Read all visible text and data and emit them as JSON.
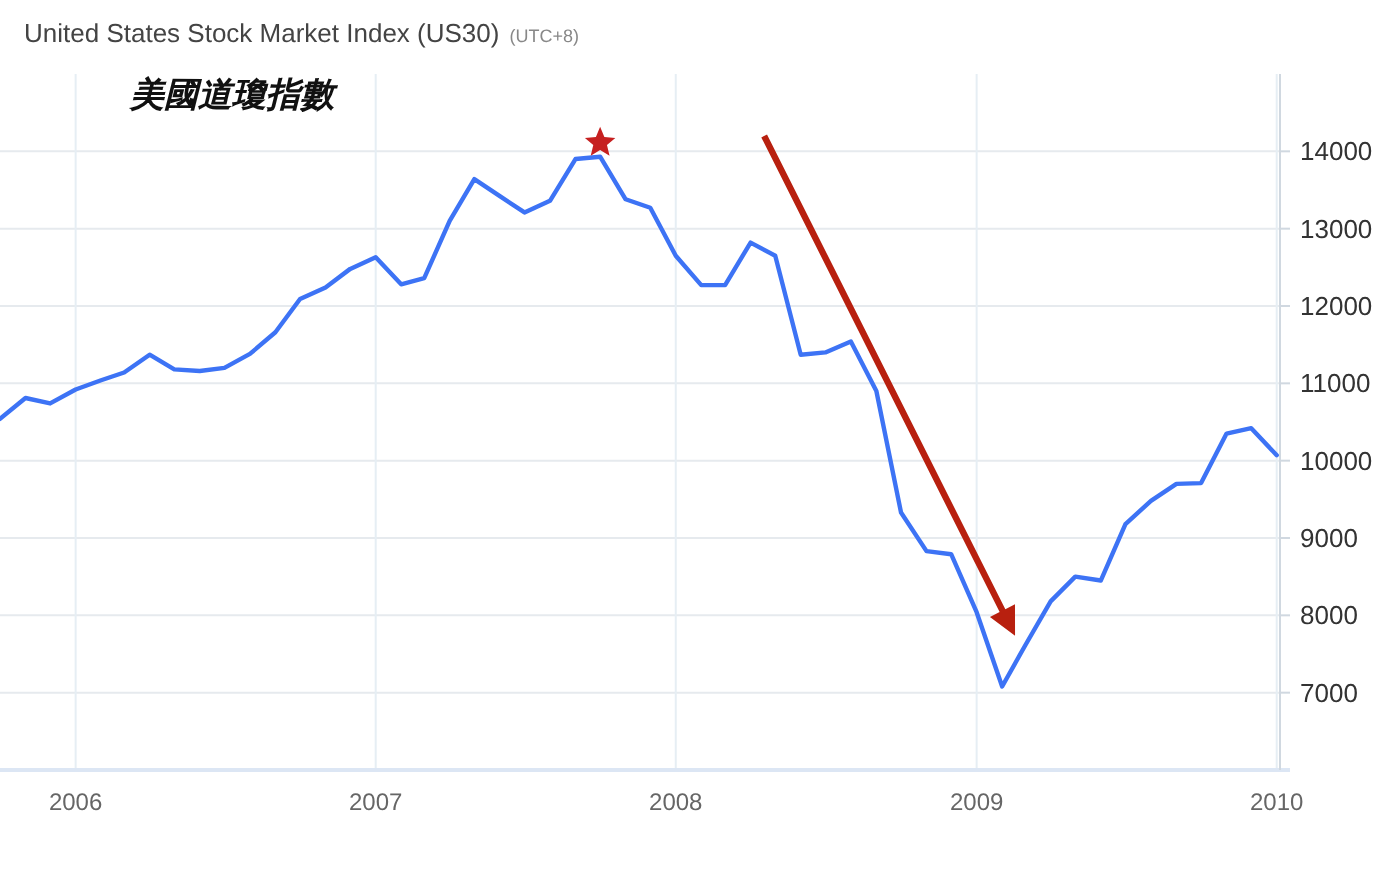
{
  "chart_data": {
    "type": "line",
    "title": "United States Stock Market Index (US30)",
    "subtitle": "(UTC+8)",
    "annotations": [
      "美國道瓊指數"
    ],
    "x": [
      "2005-10",
      "2005-11",
      "2005-12",
      "2006-01",
      "2006-02",
      "2006-03",
      "2006-04",
      "2006-05",
      "2006-06",
      "2006-07",
      "2006-08",
      "2006-09",
      "2006-10",
      "2006-11",
      "2006-12",
      "2007-01",
      "2007-02",
      "2007-03",
      "2007-04",
      "2007-05",
      "2007-06",
      "2007-07",
      "2007-08",
      "2007-09",
      "2007-10",
      "2007-11",
      "2007-12",
      "2008-01",
      "2008-02",
      "2008-03",
      "2008-04",
      "2008-05",
      "2008-06",
      "2008-07",
      "2008-08",
      "2008-09",
      "2008-10",
      "2008-11",
      "2008-12",
      "2009-01",
      "2009-02",
      "2009-03",
      "2009-04",
      "2009-05",
      "2009-06",
      "2009-07",
      "2009-08",
      "2009-09",
      "2009-10",
      "2009-11",
      "2009-12",
      "2010-01"
    ],
    "series": [
      {
        "type": "line",
        "color": "#3d73f5",
        "marker": "none",
        "values": [
          10540,
          10810,
          10740,
          10920,
          11040,
          11140,
          11370,
          11180,
          11160,
          11200,
          11380,
          11660,
          12090,
          12240,
          12480,
          12630,
          12280,
          12360,
          13100,
          13640,
          13420,
          13210,
          13360,
          13900,
          13930,
          13380,
          13270,
          12650,
          12270,
          12270,
          12820,
          12650,
          11370,
          11400,
          11540,
          10900,
          9330,
          8830,
          8790,
          8040,
          7080,
          7610,
          8180,
          8500,
          8450,
          9180,
          9480,
          9700,
          9710,
          10350,
          10420,
          10070
        ]
      },
      {
        "type": "scatter",
        "color": "#c62020",
        "marker": "star",
        "x": [
          "2007-10"
        ],
        "values": [
          14110
        ]
      }
    ],
    "xlim": [
      "2005-10-01",
      "2010-01-05"
    ],
    "xticks": [
      {
        "value": "2006",
        "label": "2006"
      },
      {
        "value": "2007",
        "label": "2007"
      },
      {
        "value": "2008",
        "label": "2008"
      },
      {
        "value": "2009",
        "label": "2009"
      },
      {
        "value": "2010",
        "label": "2010"
      }
    ],
    "ylim": [
      6000,
      15000
    ],
    "yticks": [
      7000,
      8000,
      9000,
      10000,
      11000,
      12000,
      13000,
      14000
    ],
    "grid": true
  }
}
